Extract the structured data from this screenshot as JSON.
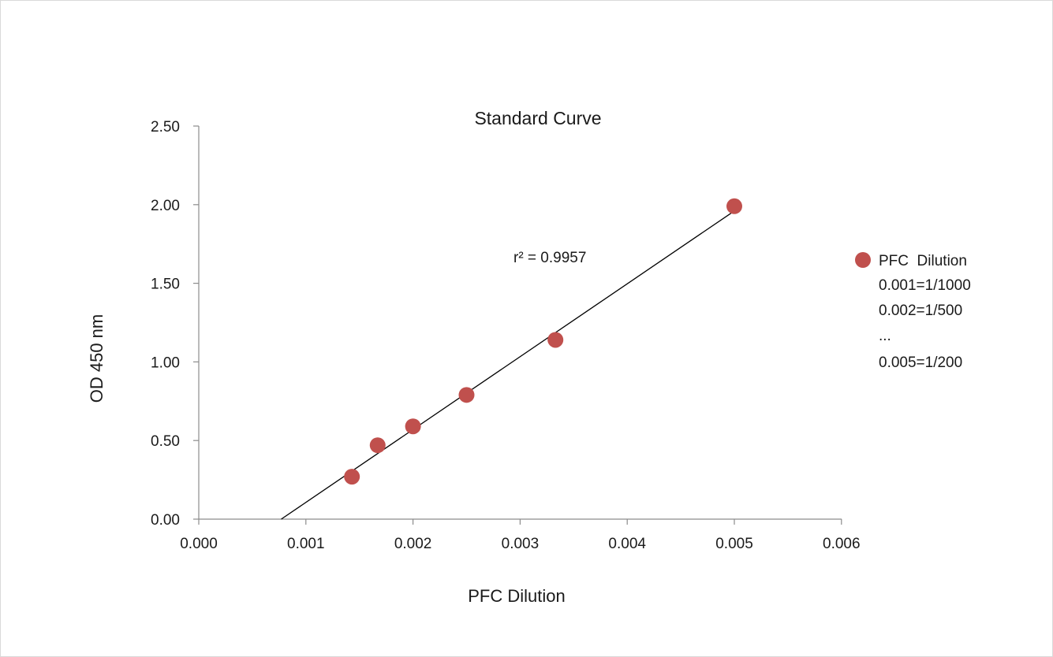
{
  "chart_data": {
    "type": "scatter",
    "title": "Standard Curve",
    "xlabel": "PFC Dilution",
    "ylabel": "OD 450 nm",
    "xlim": [
      0,
      0.006
    ],
    "ylim": [
      0,
      2.5
    ],
    "x_ticks": [
      "0.000",
      "0.001",
      "0.002",
      "0.003",
      "0.004",
      "0.005",
      "0.006"
    ],
    "y_ticks": [
      "0.00",
      "0.50",
      "1.00",
      "1.50",
      "2.00",
      "2.50"
    ],
    "grid": false,
    "series": [
      {
        "name": "PFC  Dilution",
        "color": "#c0504d",
        "points": [
          {
            "x": 0.00143,
            "y": 0.27
          },
          {
            "x": 0.00167,
            "y": 0.47
          },
          {
            "x": 0.002,
            "y": 0.59
          },
          {
            "x": 0.0025,
            "y": 0.79
          },
          {
            "x": 0.00333,
            "y": 1.14
          },
          {
            "x": 0.005,
            "y": 1.99
          }
        ]
      }
    ],
    "trendline": {
      "type": "linear",
      "color": "#000000",
      "x_start": 0.00077,
      "y_start": 0.0,
      "x_end": 0.005,
      "y_end": 1.96
    },
    "annotation": "r² = 0.9957",
    "legend": {
      "position": "right",
      "entries": [
        "PFC  Dilution",
        "0.001=1/1000",
        "0.002=1/500",
        "...",
        "0.005=1/200"
      ]
    }
  }
}
